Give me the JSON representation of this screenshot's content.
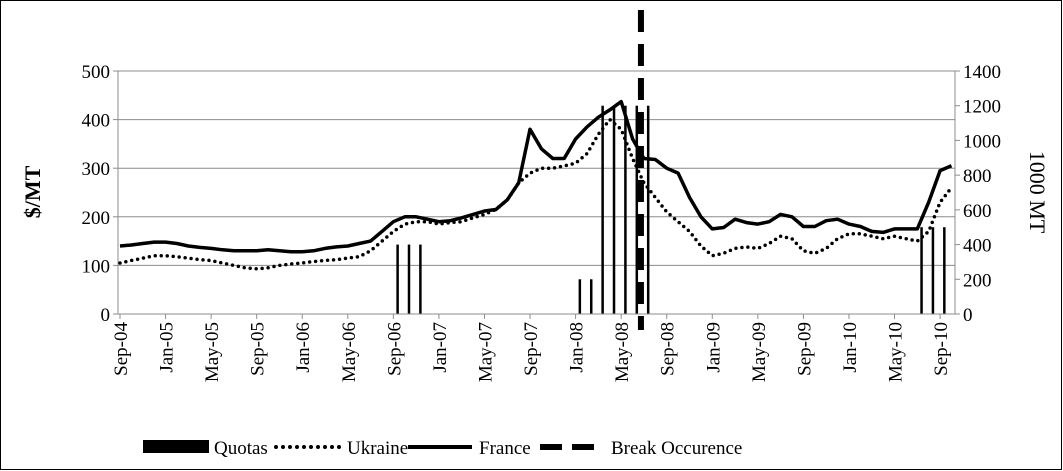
{
  "chart_data": {
    "type": "combo",
    "y_label": "$/MT",
    "y2_label": "1000 MT",
    "categories": [
      "Sep-04",
      null,
      null,
      null,
      "Jan-05",
      null,
      null,
      null,
      "May-05",
      null,
      null,
      null,
      "Sep-05",
      null,
      null,
      null,
      "Jan-06",
      null,
      null,
      null,
      "May-06",
      null,
      null,
      null,
      "Sep-06",
      null,
      null,
      null,
      "Jan-07",
      null,
      null,
      null,
      "May-07",
      null,
      null,
      null,
      "Sep-07",
      null,
      null,
      null,
      "Jan-08",
      null,
      null,
      null,
      "May-08",
      null,
      null,
      null,
      "Sep-08",
      null,
      null,
      null,
      "Jan-09",
      null,
      null,
      null,
      "May-09",
      null,
      null,
      null,
      "Sep-09",
      null,
      null,
      null,
      "Jan-10",
      null,
      null,
      null,
      "May-10",
      null,
      null,
      null,
      "Sep-10",
      null
    ],
    "series": [
      {
        "name": "Quotas",
        "kind": "bar",
        "axis": "y2",
        "color": "#000000",
        "values": [
          null,
          null,
          null,
          null,
          null,
          null,
          null,
          null,
          null,
          null,
          null,
          null,
          null,
          null,
          null,
          null,
          null,
          null,
          null,
          null,
          null,
          null,
          null,
          null,
          400,
          400,
          400,
          null,
          null,
          null,
          null,
          null,
          null,
          null,
          null,
          null,
          null,
          null,
          null,
          null,
          200,
          200,
          1200,
          1200,
          1200,
          1200,
          1200,
          null,
          null,
          null,
          null,
          null,
          null,
          null,
          null,
          null,
          null,
          null,
          null,
          null,
          null,
          null,
          null,
          null,
          null,
          null,
          null,
          null,
          null,
          null,
          500,
          500,
          500,
          null
        ]
      },
      {
        "name": "Ukraine",
        "kind": "line",
        "style": "dotted",
        "color": "#000000",
        "values": [
          105,
          110,
          115,
          120,
          120,
          118,
          115,
          112,
          110,
          105,
          100,
          95,
          93,
          95,
          100,
          103,
          105,
          108,
          110,
          112,
          115,
          118,
          130,
          150,
          170,
          185,
          190,
          190,
          185,
          188,
          190,
          198,
          205,
          215,
          235,
          270,
          290,
          300,
          300,
          305,
          310,
          330,
          370,
          400,
          380,
          320,
          270,
          240,
          210,
          190,
          170,
          140,
          120,
          125,
          135,
          138,
          135,
          145,
          160,
          155,
          130,
          125,
          135,
          155,
          165,
          165,
          160,
          155,
          160,
          155,
          150,
          170,
          230,
          260
        ]
      },
      {
        "name": "France",
        "kind": "line",
        "style": "solid",
        "color": "#000000",
        "values": [
          140,
          142,
          145,
          148,
          148,
          145,
          140,
          137,
          135,
          132,
          130,
          130,
          130,
          132,
          130,
          128,
          128,
          130,
          135,
          138,
          140,
          145,
          150,
          170,
          190,
          200,
          200,
          195,
          190,
          192,
          198,
          205,
          212,
          215,
          235,
          270,
          380,
          340,
          320,
          320,
          360,
          385,
          405,
          420,
          437,
          360,
          320,
          318,
          300,
          290,
          240,
          200,
          175,
          178,
          195,
          188,
          185,
          190,
          205,
          200,
          180,
          180,
          192,
          195,
          185,
          180,
          170,
          168,
          175,
          175,
          175,
          230,
          295,
          305
        ]
      }
    ],
    "break_line": {
      "name": "Break Occurence",
      "index": 46,
      "color": "#000000"
    },
    "ylim": [
      0,
      500
    ],
    "yticks": [
      0,
      100,
      200,
      300,
      400,
      500
    ],
    "y2lim": [
      0,
      1400
    ],
    "y2ticks": [
      0,
      200,
      400,
      600,
      800,
      1000,
      1200,
      1400
    ],
    "grid": true
  }
}
